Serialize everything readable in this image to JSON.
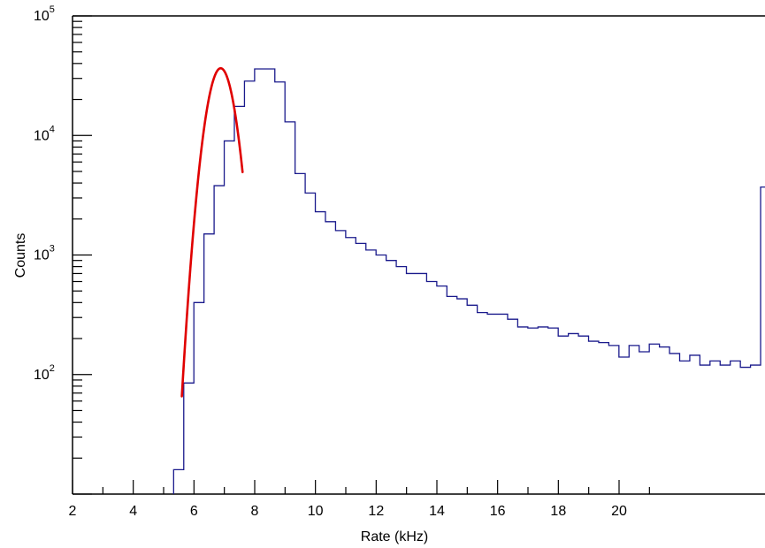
{
  "chart_data": {
    "type": "histogram",
    "xlabel": "Rate (kHz)",
    "ylabel": "Counts",
    "xlim": [
      2,
      21.2
    ],
    "ylim": [
      10,
      100000
    ],
    "yscale": "log",
    "xticks": [
      "2",
      "4",
      "6",
      "8",
      "10",
      "12",
      "14",
      "16",
      "18",
      "20"
    ],
    "yticks": [
      {
        "base": "10",
        "exp": "2"
      },
      {
        "base": "10",
        "exp": "3"
      },
      {
        "base": "10",
        "exp": "4"
      },
      {
        "base": "10",
        "exp": "5"
      }
    ],
    "bin_width": 0.3333,
    "bin_start": 5.33,
    "counts": [
      16,
      85,
      400,
      1500,
      3800,
      9000,
      17500,
      28500,
      36000,
      36000,
      28000,
      13000,
      4800,
      3300,
      2300,
      1900,
      1600,
      1400,
      1250,
      1100,
      1000,
      900,
      800,
      700,
      700,
      600,
      550,
      450,
      430,
      380,
      330,
      320,
      320,
      290,
      250,
      245,
      250,
      245,
      210,
      220,
      210,
      190,
      185,
      175,
      140,
      175,
      155,
      180,
      170,
      150,
      130,
      145,
      120,
      130,
      120,
      130,
      115,
      120,
      3700
    ],
    "series": [
      {
        "name": "",
        "kind": "histogram",
        "color": "#1a1a8c"
      },
      {
        "name": "",
        "kind": "gaussian-fit",
        "color": "#e00000",
        "x_range": [
          5.6,
          7.6
        ],
        "peak": 36500,
        "mean": 6.88,
        "sigma": 0.36
      }
    ],
    "grid": false
  }
}
